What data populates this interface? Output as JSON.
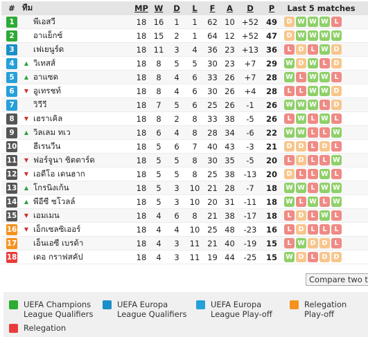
{
  "header": {
    "pos": "#",
    "team": "ทีม",
    "mp": "MP",
    "w": "W",
    "d": "D",
    "l": "L",
    "f": "F",
    "a": "A",
    "gd": "D",
    "p": "P",
    "form": "Last 5 matches"
  },
  "colors": {
    "champions": "#2dab35",
    "europa": "#1b8fc7",
    "playoff": "#25a0d9",
    "relegation_playoff": "#f5921e",
    "relegation": "#ea3b3b",
    "neutral": "#555555",
    "form_W": "#8fd06a",
    "form_D": "#f7c68d",
    "form_L": "#ef8a85"
  },
  "rows": [
    {
      "pos": "1",
      "zone": "champions",
      "arrow": "",
      "team": "พีเอสวี",
      "mp": "18",
      "w": "16",
      "d": "1",
      "l": "1",
      "f": "62",
      "a": "10",
      "gd": "+52",
      "p": "49",
      "form": [
        "D",
        "W",
        "W",
        "W",
        "L"
      ]
    },
    {
      "pos": "2",
      "zone": "champions",
      "arrow": "",
      "team": "อาแย็กซ์",
      "mp": "18",
      "w": "15",
      "d": "2",
      "l": "1",
      "f": "64",
      "a": "12",
      "gd": "+52",
      "p": "47",
      "form": [
        "D",
        "W",
        "W",
        "W",
        "W"
      ]
    },
    {
      "pos": "3",
      "zone": "europa",
      "arrow": "",
      "team": "เฟเยนูร์ด",
      "mp": "18",
      "w": "11",
      "d": "3",
      "l": "4",
      "f": "36",
      "a": "23",
      "gd": "+13",
      "p": "36",
      "form": [
        "L",
        "D",
        "L",
        "W",
        "D"
      ]
    },
    {
      "pos": "4",
      "zone": "playoff",
      "arrow": "up",
      "team": "วิเทสส์",
      "mp": "18",
      "w": "8",
      "d": "5",
      "l": "5",
      "f": "30",
      "a": "23",
      "gd": "+7",
      "p": "29",
      "form": [
        "W",
        "D",
        "W",
        "L",
        "D"
      ]
    },
    {
      "pos": "5",
      "zone": "playoff",
      "arrow": "up",
      "team": "อาแซด",
      "mp": "18",
      "w": "8",
      "d": "4",
      "l": "6",
      "f": "33",
      "a": "26",
      "gd": "+7",
      "p": "28",
      "form": [
        "W",
        "L",
        "W",
        "W",
        "L"
      ]
    },
    {
      "pos": "6",
      "zone": "playoff",
      "arrow": "down",
      "team": "อูเทรชท์",
      "mp": "18",
      "w": "8",
      "d": "4",
      "l": "6",
      "f": "30",
      "a": "26",
      "gd": "+4",
      "p": "28",
      "form": [
        "L",
        "L",
        "W",
        "W",
        "D"
      ]
    },
    {
      "pos": "7",
      "zone": "playoff",
      "arrow": "",
      "team": "วิวีวี",
      "mp": "18",
      "w": "7",
      "d": "5",
      "l": "6",
      "f": "25",
      "a": "26",
      "gd": "-1",
      "p": "26",
      "form": [
        "W",
        "W",
        "W",
        "L",
        "D"
      ]
    },
    {
      "pos": "8",
      "zone": "neutral",
      "arrow": "down",
      "team": "เฮราเคิล",
      "mp": "18",
      "w": "8",
      "d": "2",
      "l": "8",
      "f": "33",
      "a": "38",
      "gd": "-5",
      "p": "26",
      "form": [
        "L",
        "W",
        "L",
        "W",
        "L"
      ]
    },
    {
      "pos": "9",
      "zone": "neutral",
      "arrow": "up",
      "team": "วิลเลม ทเว",
      "mp": "18",
      "w": "6",
      "d": "4",
      "l": "8",
      "f": "28",
      "a": "34",
      "gd": "-6",
      "p": "22",
      "form": [
        "W",
        "W",
        "L",
        "L",
        "W"
      ]
    },
    {
      "pos": "10",
      "zone": "neutral",
      "arrow": "",
      "team": "ฮีเรนวีน",
      "mp": "18",
      "w": "5",
      "d": "6",
      "l": "7",
      "f": "40",
      "a": "43",
      "gd": "-3",
      "p": "21",
      "form": [
        "D",
        "D",
        "L",
        "D",
        "L"
      ]
    },
    {
      "pos": "11",
      "zone": "neutral",
      "arrow": "down",
      "team": "ฟอร์จูนา ซิตตาร์ด",
      "mp": "18",
      "w": "5",
      "d": "5",
      "l": "8",
      "f": "30",
      "a": "35",
      "gd": "-5",
      "p": "20",
      "form": [
        "L",
        "D",
        "L",
        "L",
        "W"
      ]
    },
    {
      "pos": "12",
      "zone": "neutral",
      "arrow": "down",
      "team": "เอดีโอ เดนฮาก",
      "mp": "18",
      "w": "5",
      "d": "5",
      "l": "8",
      "f": "25",
      "a": "38",
      "gd": "-13",
      "p": "20",
      "form": [
        "D",
        "L",
        "L",
        "W",
        "L"
      ]
    },
    {
      "pos": "13",
      "zone": "neutral",
      "arrow": "up",
      "team": "โกรนิงเก้น",
      "mp": "18",
      "w": "5",
      "d": "3",
      "l": "10",
      "f": "21",
      "a": "28",
      "gd": "-7",
      "p": "18",
      "form": [
        "W",
        "W",
        "L",
        "W",
        "W"
      ]
    },
    {
      "pos": "14",
      "zone": "neutral",
      "arrow": "up",
      "team": "พีอีซี ซโวลล์",
      "mp": "18",
      "w": "5",
      "d": "3",
      "l": "10",
      "f": "20",
      "a": "31",
      "gd": "-11",
      "p": "18",
      "form": [
        "W",
        "L",
        "W",
        "L",
        "W"
      ]
    },
    {
      "pos": "15",
      "zone": "neutral",
      "arrow": "down",
      "team": "เอมเมน",
      "mp": "18",
      "w": "4",
      "d": "6",
      "l": "8",
      "f": "21",
      "a": "38",
      "gd": "-17",
      "p": "18",
      "form": [
        "L",
        "D",
        "L",
        "W",
        "L"
      ]
    },
    {
      "pos": "16",
      "zone": "relegation_playoff",
      "arrow": "down",
      "team": "เอ็กเซลซิเออร์",
      "mp": "18",
      "w": "4",
      "d": "4",
      "l": "10",
      "f": "25",
      "a": "48",
      "gd": "-23",
      "p": "16",
      "form": [
        "L",
        "D",
        "L",
        "L",
        "L"
      ]
    },
    {
      "pos": "17",
      "zone": "relegation_playoff",
      "arrow": "",
      "team": "เอ็นเอซี เบรด้า",
      "mp": "18",
      "w": "4",
      "d": "3",
      "l": "11",
      "f": "21",
      "a": "40",
      "gd": "-19",
      "p": "15",
      "form": [
        "L",
        "W",
        "D",
        "D",
        "L"
      ]
    },
    {
      "pos": "18",
      "zone": "relegation",
      "arrow": "",
      "team": "เดอ กราฟสคัป",
      "mp": "18",
      "w": "4",
      "d": "3",
      "l": "11",
      "f": "19",
      "a": "44",
      "gd": "-25",
      "p": "15",
      "form": [
        "W",
        "D",
        "L",
        "D",
        "D"
      ]
    }
  ],
  "compare_button": "Compare two teams",
  "legend": [
    {
      "key": "champions",
      "label": "UEFA Champions League Qualifiers"
    },
    {
      "key": "europa",
      "label": "UEFA Europa League Qualifiers"
    },
    {
      "key": "playoff",
      "label": "UEFA Europa League Play-off"
    },
    {
      "key": "relegation_playoff",
      "label": "Relegation Play-off"
    },
    {
      "key": "relegation",
      "label": "Relegation"
    }
  ]
}
